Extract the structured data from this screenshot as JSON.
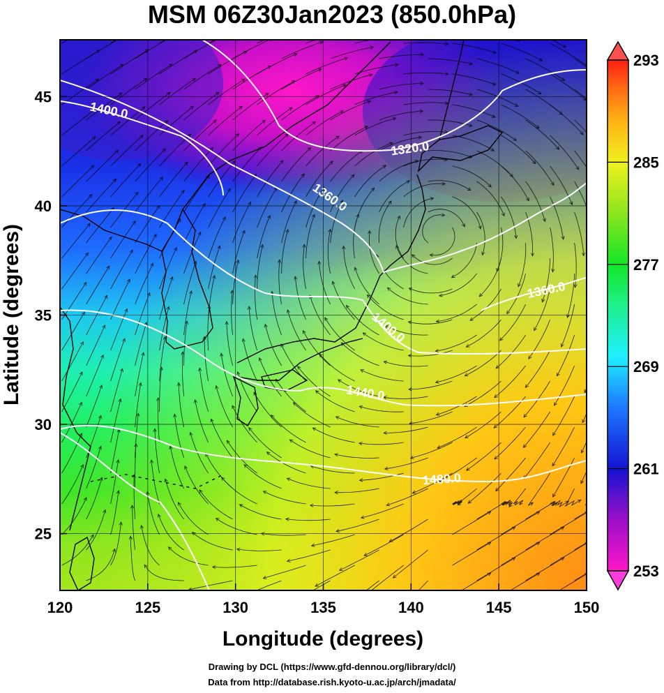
{
  "title": "MSM 06Z30Jan2023 (850.0hPa)",
  "xlabel": "Longitude (degrees)",
  "ylabel": "Latitude  (degrees)",
  "credits": [
    "Drawing by DCL (https://www.gfd-dennou.org/library/dcl/)",
    "Data from http://database.rish.kyoto-u.ac.jp/arch/jmadata/"
  ],
  "map": {
    "lon_range": [
      120,
      150
    ],
    "lat_range": [
      22.4,
      47.6
    ],
    "lon_ticks": [
      120,
      125,
      130,
      135,
      140,
      145,
      150
    ],
    "lat_ticks": [
      25,
      30,
      35,
      40,
      45
    ],
    "grid": true,
    "field": "temperature (K) shaded, geopotential height (m) contoured, wind streamlines"
  },
  "colorbar": {
    "ticks": [
      253,
      261,
      269,
      277,
      285,
      293
    ],
    "min": 253,
    "max": 293,
    "colors": [
      "#ff16c8",
      "#9b0fc8",
      "#1414d2",
      "#1e60ff",
      "#1ef0ff",
      "#1ef08c",
      "#14e628",
      "#8ce61e",
      "#f0f01e",
      "#ffb414",
      "#ff6414",
      "#ff1e14"
    ]
  },
  "contours": [
    {
      "label": "1320.0"
    },
    {
      "label": "1360.0"
    },
    {
      "label": "1360.0"
    },
    {
      "label": "1400.0"
    },
    {
      "label": "1400.0"
    },
    {
      "label": "1440.0"
    },
    {
      "label": "1480.0"
    }
  ]
}
